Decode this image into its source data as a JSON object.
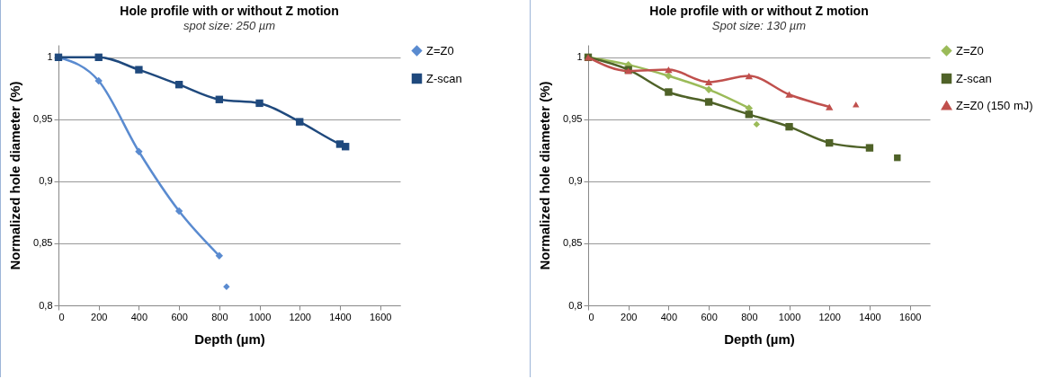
{
  "chart_data": [
    {
      "type": "line",
      "title": "Hole profile with or without Z motion",
      "subtitle": "spot size: 250 µm",
      "xlabel": "Depth (µm)",
      "ylabel": "Normalized hole diameter (%)",
      "xlim": [
        0,
        1700
      ],
      "xticks": [
        0,
        200,
        400,
        600,
        800,
        1000,
        1200,
        1400,
        1600
      ],
      "ylim": [
        0.8,
        1.01
      ],
      "yticks": [
        {
          "value": 0.8,
          "label": "0,8"
        },
        {
          "value": 0.85,
          "label": "0,85"
        },
        {
          "value": 0.9,
          "label": "0,9"
        },
        {
          "value": 0.95,
          "label": "0,95"
        },
        {
          "value": 1,
          "label": "1"
        }
      ],
      "grid": "y",
      "legend": "right",
      "series": [
        {
          "name": "Z=Z0",
          "color": "#5a8bd0",
          "marker": "diamond",
          "x": [
            0,
            200,
            400,
            600,
            800
          ],
          "values": [
            1,
            0.981,
            0.924,
            0.876,
            0.84
          ]
        },
        {
          "type": "scatter",
          "color": "#5a8bd0",
          "marker": "diamond",
          "x": [
            836
          ],
          "values": [
            0.815
          ]
        },
        {
          "name": "Z-scan",
          "color": "#1f497d",
          "marker": "square",
          "x": [
            0,
            200,
            400,
            600,
            800,
            1000,
            1200,
            1400,
            1428
          ],
          "values": [
            1,
            1,
            0.99,
            0.978,
            0.966,
            0.963,
            0.948,
            0.93,
            0.928
          ]
        }
      ]
    },
    {
      "type": "line",
      "title": "Hole profile with or without Z motion",
      "subtitle": "Spot size: 130 µm",
      "xlabel": "Depth (µm)",
      "ylabel": "Normalized hole diameter (%)",
      "xlim": [
        0,
        1700
      ],
      "xticks": [
        0,
        200,
        400,
        600,
        800,
        1000,
        1200,
        1400,
        1600
      ],
      "ylim": [
        0.8,
        1.01
      ],
      "yticks": [
        {
          "value": 0.8,
          "label": "0,8"
        },
        {
          "value": 0.85,
          "label": "0,85"
        },
        {
          "value": 0.9,
          "label": "0,9"
        },
        {
          "value": 0.95,
          "label": "0,95"
        },
        {
          "value": 1,
          "label": "1"
        }
      ],
      "grid": "y",
      "legend": "right",
      "series": [
        {
          "name": "Z=Z0",
          "color": "#9bbb59",
          "marker": "diamond",
          "x": [
            0,
            200,
            400,
            600,
            800
          ],
          "values": [
            1,
            0.994,
            0.985,
            0.974,
            0.959
          ]
        },
        {
          "type": "scatter",
          "color": "#9bbb59",
          "marker": "diamond",
          "x": [
            838
          ],
          "values": [
            0.946
          ]
        },
        {
          "name": "Z-scan",
          "color": "#4f6228",
          "marker": "square",
          "x": [
            0,
            200,
            400,
            600,
            800,
            1000,
            1200,
            1400
          ],
          "values": [
            1,
            0.99,
            0.972,
            0.964,
            0.954,
            0.944,
            0.931,
            0.927
          ]
        },
        {
          "type": "scatter",
          "color": "#4f6228",
          "marker": "square",
          "x": [
            1538
          ],
          "values": [
            0.919
          ]
        },
        {
          "name": "Z=Z0 (150 mJ)",
          "color": "#c0504d",
          "marker": "triangle",
          "x": [
            0,
            200,
            400,
            600,
            800,
            1000,
            1200
          ],
          "values": [
            1,
            0.989,
            0.99,
            0.98,
            0.985,
            0.97,
            0.96
          ]
        },
        {
          "type": "scatter",
          "color": "#c0504d",
          "marker": "triangle",
          "x": [
            1332
          ],
          "values": [
            0.962
          ]
        }
      ]
    }
  ]
}
